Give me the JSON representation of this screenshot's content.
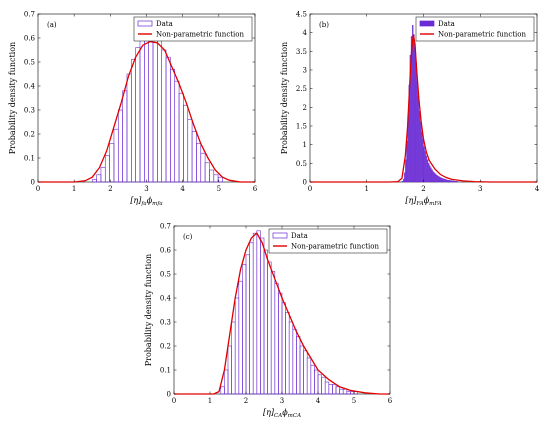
{
  "colors": {
    "data": "#6a2bd4",
    "fit": "#e00000",
    "axis": "#000000"
  },
  "chart_data": [
    {
      "type": "bar",
      "panel_label": "(a)",
      "xlabel": "[η]fa ϕmfa",
      "xlabel_main": "[η]",
      "xlabel_sub1": "fa",
      "xlabel_phi": "ϕ",
      "xlabel_sub2": "mfa",
      "ylabel": "Probability density function",
      "xlim": [
        0,
        6
      ],
      "ylim": [
        0,
        0.7
      ],
      "xticks": [
        "0",
        "1",
        "2",
        "3",
        "4",
        "5",
        "6"
      ],
      "yticks": [
        "0",
        "0.1",
        "0.2",
        "0.3",
        "0.4",
        "0.5",
        "0.6",
        "0.7"
      ],
      "legend_position": "top-right",
      "series": [
        {
          "name": "Data"
        },
        {
          "name": "Non-parametric function"
        }
      ],
      "bar_width": 0.12,
      "bins": [
        1.5,
        1.62,
        1.74,
        1.86,
        1.98,
        2.1,
        2.22,
        2.34,
        2.46,
        2.58,
        2.7,
        2.82,
        2.94,
        3.06,
        3.18,
        3.3,
        3.42,
        3.54,
        3.66,
        3.78,
        3.9,
        4.02,
        4.14,
        4.26,
        4.38,
        4.5,
        4.62,
        4.74,
        4.86,
        4.98
      ],
      "values": [
        0.01,
        0.03,
        0.06,
        0.11,
        0.16,
        0.22,
        0.3,
        0.38,
        0.45,
        0.51,
        0.56,
        0.61,
        0.6,
        0.59,
        0.6,
        0.6,
        0.55,
        0.52,
        0.47,
        0.42,
        0.37,
        0.32,
        0.26,
        0.21,
        0.16,
        0.12,
        0.08,
        0.05,
        0.03,
        0.02
      ],
      "curve": {
        "x": [
          0,
          1.0,
          1.3,
          1.5,
          1.7,
          1.9,
          2.1,
          2.3,
          2.5,
          2.7,
          2.9,
          3.1,
          3.3,
          3.5,
          3.7,
          3.9,
          4.1,
          4.3,
          4.5,
          4.7,
          4.9,
          5.1,
          5.3,
          5.6,
          6
        ],
        "y": [
          0,
          0,
          0.005,
          0.02,
          0.06,
          0.13,
          0.23,
          0.33,
          0.44,
          0.52,
          0.57,
          0.585,
          0.58,
          0.55,
          0.48,
          0.41,
          0.33,
          0.24,
          0.16,
          0.1,
          0.05,
          0.02,
          0.007,
          0,
          0
        ]
      }
    },
    {
      "type": "bar",
      "panel_label": "(b)",
      "xlabel": "[η]FA ϕmFA",
      "xlabel_main": "[η]",
      "xlabel_sub1": "FA",
      "xlabel_phi": "ϕ",
      "xlabel_sub2": "mFA",
      "ylabel": "Probability density function",
      "xlim": [
        0,
        4
      ],
      "ylim": [
        0,
        4.5
      ],
      "xticks": [
        "0",
        "1",
        "2",
        "3",
        "4"
      ],
      "yticks": [
        "0",
        "0.5",
        "1",
        "1.5",
        "2",
        "2.5",
        "3",
        "3.5",
        "4",
        "4.5"
      ],
      "legend_position": "top-right",
      "series": [
        {
          "name": "Data"
        },
        {
          "name": "Non-parametric function"
        }
      ],
      "bar_width": 0.02,
      "bins": [
        1.62,
        1.64,
        1.66,
        1.68,
        1.7,
        1.72,
        1.74,
        1.76,
        1.78,
        1.8,
        1.82,
        1.84,
        1.86,
        1.88,
        1.9,
        1.92,
        1.94,
        1.96,
        1.98,
        2.0,
        2.02,
        2.04,
        2.06,
        2.08,
        2.1,
        2.12,
        2.14,
        2.16,
        2.18,
        2.2,
        2.22,
        2.24,
        2.26,
        2.28,
        2.3,
        2.32,
        2.34,
        2.36,
        2.38,
        2.4,
        2.42,
        2.44,
        2.46,
        2.48,
        2.5,
        2.52,
        2.54,
        2.56,
        2.58,
        2.6
      ],
      "values": [
        0.02,
        0.08,
        0.25,
        0.6,
        1.1,
        1.8,
        2.6,
        3.4,
        3.9,
        4.2,
        3.95,
        3.6,
        3.2,
        2.7,
        2.3,
        1.9,
        1.6,
        1.35,
        1.15,
        0.95,
        0.82,
        0.7,
        0.6,
        0.5,
        0.44,
        0.38,
        0.33,
        0.28,
        0.25,
        0.22,
        0.19,
        0.17,
        0.15,
        0.13,
        0.11,
        0.1,
        0.09,
        0.08,
        0.07,
        0.06,
        0.05,
        0.05,
        0.04,
        0.04,
        0.03,
        0.03,
        0.02,
        0.02,
        0.02,
        0.01
      ],
      "curve": {
        "x": [
          0,
          1.4,
          1.55,
          1.62,
          1.68,
          1.72,
          1.76,
          1.79,
          1.82,
          1.85,
          1.88,
          1.92,
          1.96,
          2.0,
          2.05,
          2.1,
          2.2,
          2.3,
          2.4,
          2.5,
          2.7,
          2.9,
          3.2,
          4
        ],
        "y": [
          0,
          0,
          0.01,
          0.1,
          0.7,
          1.5,
          2.7,
          3.5,
          3.95,
          3.7,
          3.0,
          2.2,
          1.6,
          1.15,
          0.8,
          0.58,
          0.35,
          0.2,
          0.12,
          0.07,
          0.03,
          0.01,
          0,
          0
        ]
      }
    },
    {
      "type": "bar",
      "panel_label": "(c)",
      "xlabel": "[η]CA ϕmCA",
      "xlabel_main": "[η]",
      "xlabel_sub1": "CA",
      "xlabel_phi": "ϕ",
      "xlabel_sub2": "mCA",
      "ylabel": "Probability density function",
      "xlim": [
        0,
        6
      ],
      "ylim": [
        0,
        0.7
      ],
      "xticks": [
        "0",
        "1",
        "2",
        "3",
        "4",
        "5",
        "6"
      ],
      "yticks": [
        "0",
        "0.1",
        "0.2",
        "0.3",
        "0.4",
        "0.5",
        "0.6",
        "0.7"
      ],
      "legend_position": "top-right",
      "series": [
        {
          "name": "Data"
        },
        {
          "name": "Non-parametric function"
        }
      ],
      "bar_width": 0.1,
      "bins": [
        1.3,
        1.4,
        1.5,
        1.6,
        1.7,
        1.8,
        1.9,
        2.0,
        2.1,
        2.2,
        2.3,
        2.4,
        2.5,
        2.6,
        2.7,
        2.8,
        2.9,
        3.0,
        3.1,
        3.2,
        3.3,
        3.4,
        3.5,
        3.6,
        3.7,
        3.8,
        3.9,
        4.0,
        4.1,
        4.2,
        4.3,
        4.4,
        4.5,
        4.6,
        4.7,
        4.8,
        4.9,
        5.0
      ],
      "values": [
        0.03,
        0.1,
        0.2,
        0.3,
        0.4,
        0.47,
        0.54,
        0.58,
        0.63,
        0.67,
        0.68,
        0.65,
        0.6,
        0.55,
        0.51,
        0.46,
        0.42,
        0.38,
        0.34,
        0.3,
        0.27,
        0.24,
        0.2,
        0.18,
        0.15,
        0.12,
        0.1,
        0.08,
        0.07,
        0.05,
        0.04,
        0.04,
        0.03,
        0.02,
        0.02,
        0.01,
        0.01,
        0.01
      ],
      "curve": {
        "x": [
          0,
          1.1,
          1.25,
          1.4,
          1.55,
          1.7,
          1.85,
          2.0,
          2.15,
          2.3,
          2.45,
          2.6,
          2.8,
          3.0,
          3.2,
          3.4,
          3.6,
          3.8,
          4.0,
          4.3,
          4.6,
          4.9,
          5.3,
          5.7,
          6
        ],
        "y": [
          0,
          0,
          0.01,
          0.1,
          0.25,
          0.4,
          0.52,
          0.6,
          0.65,
          0.67,
          0.63,
          0.56,
          0.48,
          0.4,
          0.33,
          0.26,
          0.2,
          0.15,
          0.1,
          0.06,
          0.03,
          0.015,
          0.005,
          0,
          0
        ]
      }
    }
  ]
}
